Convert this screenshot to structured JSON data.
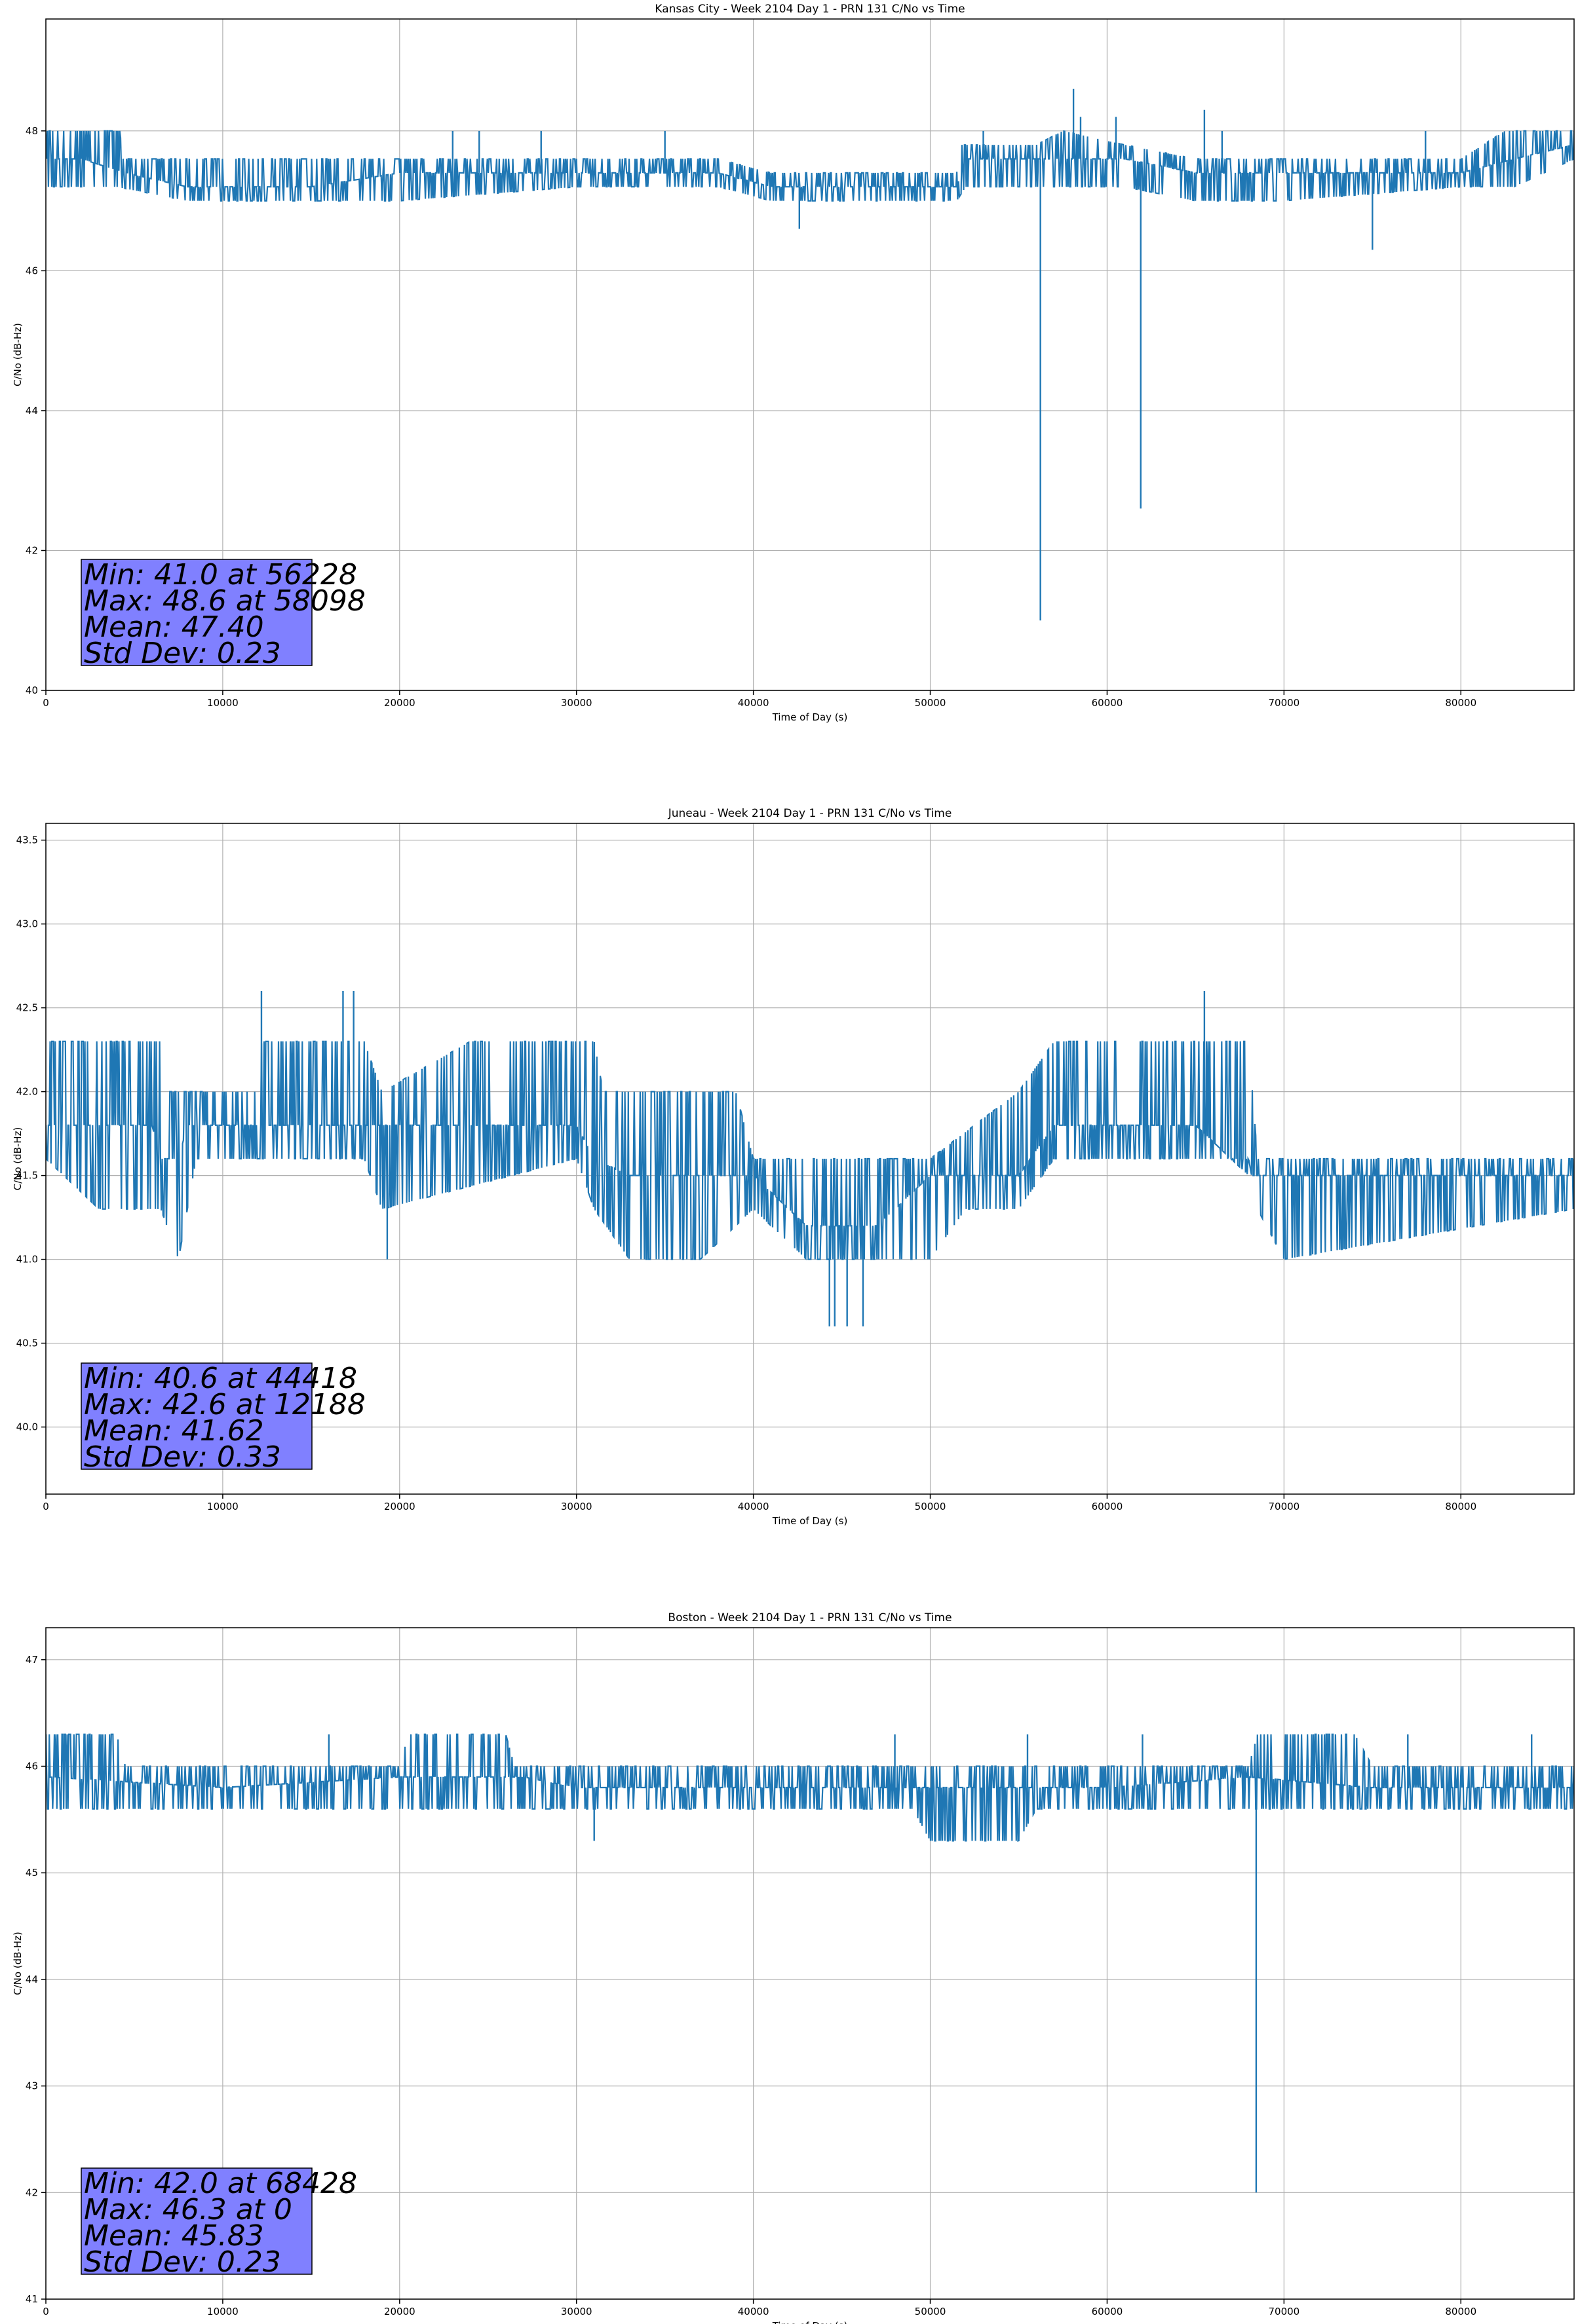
{
  "chart_data": [
    {
      "type": "line",
      "title": "Kansas City - Week 2104 Day 1 - PRN 131 C/No vs Time",
      "xlabel": "Time of Day (s)",
      "ylabel": "C/No (dB-Hz)",
      "xlim": [
        0,
        86400
      ],
      "ylim": [
        40,
        49.6
      ],
      "xticks": [
        0,
        10000,
        20000,
        30000,
        40000,
        50000,
        60000,
        70000,
        80000
      ],
      "yticks": [
        40,
        42,
        44,
        46,
        48
      ],
      "grid": true,
      "color": "#1f77b4",
      "series": [
        {
          "points": [
            [
              0,
              47.6
            ],
            [
              2000,
              47.6
            ],
            [
              4500,
              47.4
            ],
            [
              8000,
              47.2
            ],
            [
              15000,
              47.2
            ],
            [
              20000,
              47.4
            ],
            [
              30000,
              47.4
            ],
            [
              38000,
              47.4
            ],
            [
              41000,
              47.2
            ],
            [
              46000,
              47.2
            ],
            [
              51500,
              47.2
            ],
            [
              52000,
              47.6
            ],
            [
              56000,
              47.6
            ],
            [
              58000,
              47.6
            ],
            [
              61000,
              47.6
            ],
            [
              65000,
              47.4
            ],
            [
              70000,
              47.4
            ],
            [
              80000,
              47.4
            ],
            [
              83000,
              47.6
            ],
            [
              86400,
              47.8
            ]
          ],
          "high": [
            [
              0,
              48.0
            ],
            [
              4200,
              48.0
            ],
            [
              4300,
              47.6
            ],
            [
              8000,
              47.6
            ],
            [
              20000,
              47.6
            ],
            [
              30000,
              47.6
            ],
            [
              38000,
              47.6
            ],
            [
              41000,
              47.4
            ],
            [
              46000,
              47.4
            ],
            [
              51500,
              47.4
            ],
            [
              51600,
              47.8
            ],
            [
              56000,
              47.8
            ],
            [
              57500,
              48.0
            ],
            [
              61000,
              47.8
            ],
            [
              65000,
              47.6
            ],
            [
              70000,
              47.6
            ],
            [
              80000,
              47.6
            ],
            [
              82500,
              48.0
            ],
            [
              86400,
              48.0
            ]
          ],
          "low": [
            [
              0,
              47.2
            ],
            [
              4000,
              47.2
            ],
            [
              8000,
              47.0
            ],
            [
              15000,
              47.0
            ],
            [
              20000,
              47.0
            ],
            [
              30000,
              47.2
            ],
            [
              38000,
              47.2
            ],
            [
              41000,
              47.0
            ],
            [
              46000,
              47.0
            ],
            [
              51500,
              47.0
            ],
            [
              52000,
              47.2
            ],
            [
              56000,
              47.2
            ],
            [
              61000,
              47.2
            ],
            [
              65000,
              47.0
            ],
            [
              70000,
              47.0
            ],
            [
              80000,
              47.2
            ],
            [
              83000,
              47.2
            ],
            [
              86400,
              47.6
            ]
          ],
          "spikes": [
            [
              2000,
              48.0
            ],
            [
              4000,
              48.0
            ],
            [
              12000,
              47.6
            ],
            [
              23000,
              48.0
            ],
            [
              24500,
              48.0
            ],
            [
              28000,
              48.0
            ],
            [
              35000,
              48.0
            ],
            [
              42600,
              46.6
            ],
            [
              53000,
              48.0
            ],
            [
              56228,
              41.0
            ],
            [
              58098,
              48.6
            ],
            [
              58500,
              48.2
            ],
            [
              60500,
              48.2
            ],
            [
              61900,
              42.6
            ],
            [
              65500,
              48.3
            ],
            [
              66500,
              48.0
            ],
            [
              75000,
              46.3
            ],
            [
              78000,
              48.0
            ]
          ]
        }
      ],
      "stats": [
        "Min: 41.0 at 56228",
        "Max: 48.6 at 58098",
        "Mean: 47.40",
        "Std Dev: 0.23"
      ]
    },
    {
      "type": "line",
      "title": "Juneau - Week 2104 Day 1 - PRN 131 C/No vs Time",
      "xlabel": "Time of Day (s)",
      "ylabel": "C/No (dB-Hz)",
      "xlim": [
        0,
        86400
      ],
      "ylim": [
        39.6,
        43.6
      ],
      "xticks": [
        0,
        10000,
        20000,
        30000,
        40000,
        50000,
        60000,
        70000,
        80000
      ],
      "yticks": [
        40.0,
        40.5,
        41.0,
        41.5,
        42.0,
        42.5,
        43.0,
        43.5
      ],
      "grid": true,
      "color": "#1f77b4",
      "series": [
        {
          "points": [
            [
              0,
              41.8
            ],
            [
              6000,
              41.8
            ],
            [
              6500,
              41.6
            ],
            [
              7500,
              41.6
            ],
            [
              8000,
              41.8
            ],
            [
              12000,
              41.8
            ],
            [
              20000,
              41.8
            ],
            [
              30000,
              41.8
            ],
            [
              31000,
              41.6
            ],
            [
              33000,
              41.5
            ],
            [
              37000,
              41.5
            ],
            [
              40000,
              41.5
            ],
            [
              43000,
              41.2
            ],
            [
              47000,
              41.2
            ],
            [
              50000,
              41.5
            ],
            [
              55000,
              41.5
            ],
            [
              57000,
              41.8
            ],
            [
              65000,
              41.8
            ],
            [
              68000,
              41.5
            ],
            [
              72000,
              41.5
            ],
            [
              80000,
              41.5
            ],
            [
              86400,
              41.5
            ]
          ],
          "high": [
            [
              0,
              42.3
            ],
            [
              6500,
              42.3
            ],
            [
              7000,
              42.0
            ],
            [
              12000,
              42.0
            ],
            [
              12200,
              42.3
            ],
            [
              18000,
              42.3
            ],
            [
              19000,
              42.0
            ],
            [
              24000,
              42.3
            ],
            [
              31000,
              42.3
            ],
            [
              31500,
              42.0
            ],
            [
              39000,
              42.0
            ],
            [
              40000,
              41.6
            ],
            [
              50000,
              41.6
            ],
            [
              55000,
              42.0
            ],
            [
              57000,
              42.3
            ],
            [
              68000,
              42.3
            ],
            [
              68500,
              41.6
            ],
            [
              86400,
              41.6
            ]
          ],
          "low": [
            [
              0,
              41.6
            ],
            [
              3000,
              41.3
            ],
            [
              6500,
              41.3
            ],
            [
              7500,
              41.0
            ],
            [
              8500,
              41.6
            ],
            [
              18000,
              41.6
            ],
            [
              19000,
              41.3
            ],
            [
              30000,
              41.6
            ],
            [
              31000,
              41.3
            ],
            [
              33000,
              41.0
            ],
            [
              37000,
              41.0
            ],
            [
              40000,
              41.3
            ],
            [
              43000,
              41.0
            ],
            [
              50000,
              41.0
            ],
            [
              52000,
              41.3
            ],
            [
              55000,
              41.3
            ],
            [
              57000,
              41.6
            ],
            [
              68000,
              41.6
            ],
            [
              68500,
              41.3
            ],
            [
              70000,
              41.0
            ],
            [
              86400,
              41.3
            ]
          ],
          "spikes": [
            [
              12188,
              42.6
            ],
            [
              16800,
              42.6
            ],
            [
              17400,
              42.6
            ],
            [
              19300,
              41.0
            ],
            [
              44300,
              40.6
            ],
            [
              44600,
              40.6
            ],
            [
              45300,
              40.6
            ],
            [
              46200,
              40.6
            ],
            [
              65500,
              42.6
            ]
          ]
        }
      ],
      "stats": [
        "Min: 40.6 at 44418",
        "Max: 42.6 at 12188",
        "Mean: 41.62",
        "Std Dev: 0.33"
      ]
    },
    {
      "type": "line",
      "title": "Boston - Week 2104 Day 1 - PRN 131 C/No vs Time",
      "xlabel": "Time of Day (s)",
      "ylabel": "C/No (dB-Hz)",
      "xlim": [
        0,
        86400
      ],
      "ylim": [
        41,
        47.3
      ],
      "xticks": [
        0,
        10000,
        20000,
        30000,
        40000,
        50000,
        60000,
        70000,
        80000
      ],
      "yticks": [
        41,
        42,
        43,
        44,
        45,
        46,
        47
      ],
      "grid": true,
      "color": "#1f77b4",
      "series": [
        {
          "points": [
            [
              0,
              45.9
            ],
            [
              10000,
              45.8
            ],
            [
              20000,
              45.9
            ],
            [
              27000,
              45.9
            ],
            [
              30000,
              45.8
            ],
            [
              40000,
              45.8
            ],
            [
              50000,
              45.8
            ],
            [
              60000,
              45.8
            ],
            [
              68000,
              45.9
            ],
            [
              75000,
              45.8
            ],
            [
              79000,
              45.8
            ],
            [
              86400,
              45.8
            ]
          ],
          "high": [
            [
              0,
              46.3
            ],
            [
              4000,
              46.3
            ],
            [
              4500,
              46.0
            ],
            [
              20000,
              46.0
            ],
            [
              20500,
              46.3
            ],
            [
              26000,
              46.3
            ],
            [
              26500,
              46.0
            ],
            [
              68000,
              46.0
            ],
            [
              68500,
              46.3
            ],
            [
              74000,
              46.3
            ],
            [
              75000,
              46.0
            ],
            [
              86400,
              46.0
            ]
          ],
          "low": [
            [
              0,
              45.6
            ],
            [
              28000,
              45.6
            ],
            [
              29000,
              45.6
            ],
            [
              40000,
              45.6
            ],
            [
              49000,
              45.6
            ],
            [
              50000,
              45.3
            ],
            [
              55000,
              45.3
            ],
            [
              56000,
              45.6
            ],
            [
              68000,
              45.6
            ],
            [
              79000,
              45.6
            ],
            [
              79500,
              45.6
            ],
            [
              86400,
              45.6
            ]
          ],
          "spikes": [
            [
              0,
              46.3
            ],
            [
              16000,
              46.3
            ],
            [
              22000,
              46.3
            ],
            [
              31000,
              45.3
            ],
            [
              48000,
              46.3
            ],
            [
              55500,
              46.3
            ],
            [
              62000,
              46.3
            ],
            [
              68428,
              42.0
            ],
            [
              77000,
              46.3
            ],
            [
              84000,
              46.3
            ]
          ]
        }
      ],
      "stats": [
        "Min: 42.0 at 68428",
        "Max: 46.3 at 0",
        "Mean: 45.83",
        "Std Dev: 0.23"
      ]
    }
  ]
}
